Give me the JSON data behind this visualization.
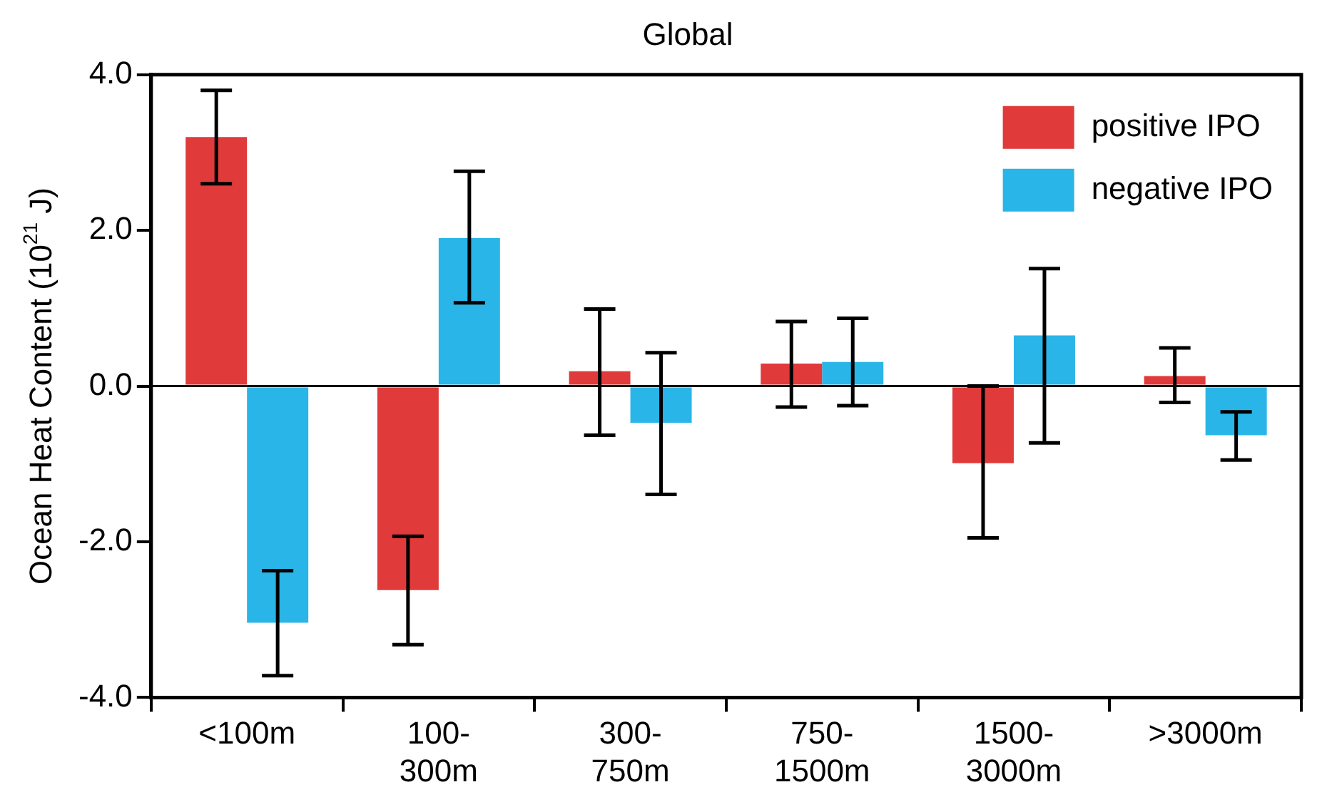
{
  "chart_data": {
    "type": "bar",
    "title": "Global",
    "ylabel": "Ocean Heat Content (10$^{21}$ J)",
    "categories": [
      "<100m",
      "100-300m",
      "300-750m",
      "750-1500m",
      "1500-3000m",
      ">3000m"
    ],
    "series": [
      {
        "name": "positive IPO",
        "color": "#e03a3a",
        "values": [
          3.2,
          -2.62,
          0.19,
          0.29,
          -0.99,
          0.13
        ],
        "errors": [
          [
            2.6,
            3.8
          ],
          [
            -3.32,
            -1.93
          ],
          [
            -0.63,
            0.99
          ],
          [
            -0.27,
            0.83
          ],
          [
            -1.95,
            0.0
          ],
          [
            -0.21,
            0.49
          ]
        ]
      },
      {
        "name": "negative IPO",
        "color": "#29b5e8",
        "values": [
          -3.04,
          1.9,
          -0.47,
          0.31,
          0.65,
          -0.63
        ],
        "errors": [
          [
            -3.72,
            -2.37
          ],
          [
            1.07,
            2.76
          ],
          [
            -1.39,
            0.43
          ],
          [
            -0.25,
            0.87
          ],
          [
            -0.73,
            1.51
          ],
          [
            -0.95,
            -0.33
          ]
        ]
      }
    ],
    "ylim": [
      -4,
      4
    ],
    "yticks": [
      {
        "value": -4,
        "label": "-4.0"
      },
      {
        "value": -2,
        "label": "-2.0"
      },
      {
        "value": 0,
        "label": "0.0"
      },
      {
        "value": 2,
        "label": "2.0"
      },
      {
        "value": 4,
        "label": "4.0"
      }
    ],
    "ref_lines": [
      {
        "axis": "y",
        "value": 0
      }
    ],
    "grid": false,
    "legend": "top right"
  }
}
